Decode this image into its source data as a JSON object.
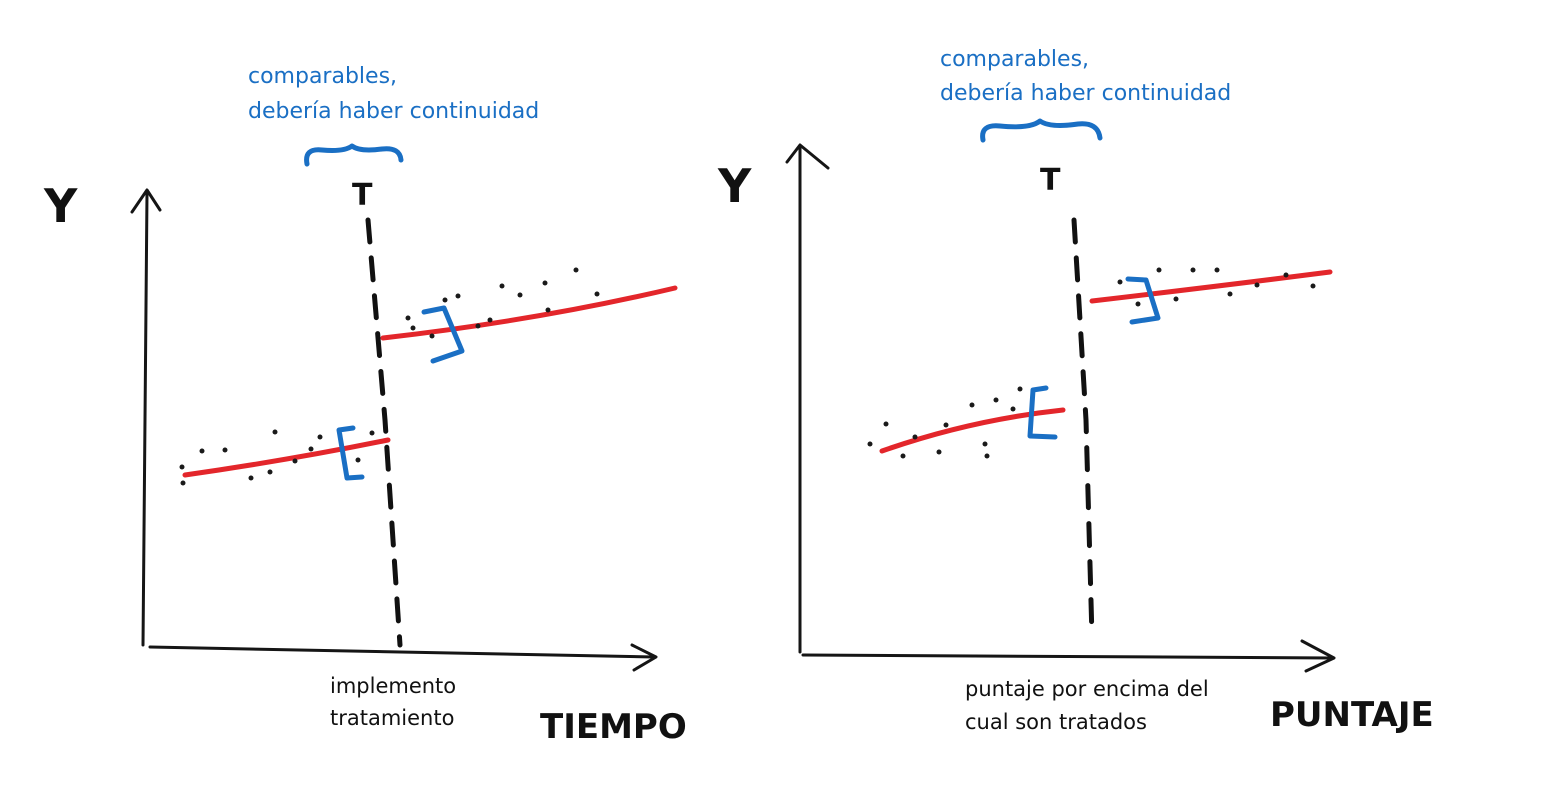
{
  "panels": [
    {
      "id": "tiempo",
      "y_label": "Y",
      "threshold_label": "T",
      "note": [
        "comparables,",
        "debería haber continuidad"
      ],
      "x_label": "TIEMPO",
      "threshold_caption": [
        "implemento",
        "tratamiento"
      ]
    },
    {
      "id": "puntaje",
      "y_label": "Y",
      "threshold_label": "T",
      "note": [
        "comparables,",
        "debería haber continuidad"
      ],
      "x_label": "PUNTAJE",
      "threshold_caption": [
        "puntaje por encima del",
        "cual son tratados"
      ]
    }
  ],
  "colors": {
    "fit_line": "#e3262b",
    "annotation": "#1a6fc4",
    "ink": "#111111"
  }
}
